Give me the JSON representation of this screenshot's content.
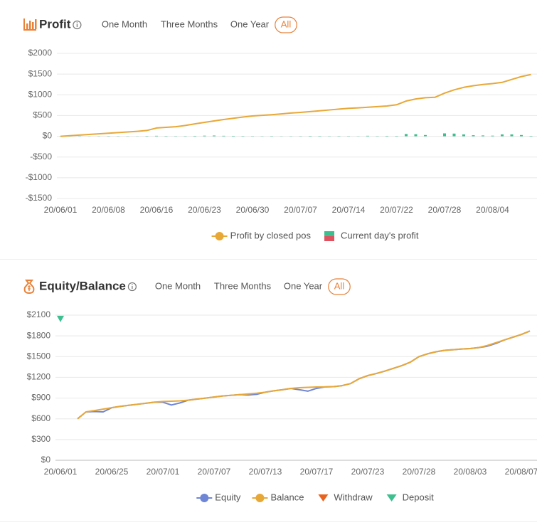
{
  "chart_data": [
    {
      "type": "line",
      "title": "Profit",
      "range_options": [
        "One Month",
        "Three Months",
        "One Year",
        "All"
      ],
      "selected_range": 3,
      "categories": [
        "20/06/01",
        null,
        null,
        null,
        null,
        "20/06/08",
        null,
        null,
        null,
        null,
        "20/06/16",
        null,
        null,
        null,
        null,
        "20/06/23",
        null,
        null,
        null,
        null,
        "20/06/30",
        null,
        null,
        null,
        null,
        "20/07/07",
        null,
        null,
        null,
        null,
        "20/07/14",
        null,
        null,
        null,
        null,
        "20/07/22",
        null,
        null,
        null,
        null,
        "20/07/28",
        null,
        null,
        null,
        null,
        "20/08/04",
        null,
        null,
        null,
        null
      ],
      "series": [
        {
          "name": "Profit by closed pos",
          "type": "line",
          "color": "#e8a838",
          "values": [
            0,
            15,
            30,
            45,
            60,
            75,
            90,
            105,
            120,
            140,
            200,
            215,
            230,
            260,
            300,
            335,
            370,
            405,
            435,
            465,
            490,
            505,
            520,
            540,
            560,
            575,
            595,
            615,
            635,
            655,
            675,
            685,
            700,
            715,
            730,
            760,
            850,
            900,
            930,
            940,
            1040,
            1120,
            1180,
            1220,
            1250,
            1270,
            1300,
            1370,
            1440,
            1490
          ]
        },
        {
          "name": "Current day's profit",
          "type": "bar",
          "color": "#3dbf8f",
          "negative_color": "#e05260",
          "values": [
            3,
            4,
            5,
            3,
            4,
            6,
            5,
            4,
            3,
            8,
            12,
            8,
            6,
            7,
            10,
            15,
            18,
            12,
            10,
            8,
            6,
            5,
            7,
            4,
            5,
            6,
            9,
            8,
            5,
            7,
            6,
            4,
            12,
            6,
            10,
            9,
            55,
            50,
            30,
            0,
            70,
            65,
            45,
            25,
            20,
            15,
            45,
            45,
            30,
            10
          ]
        }
      ],
      "ylim": [
        -1500,
        2000
      ],
      "yticks": [
        {
          "value": -1500,
          "label": "-$1500"
        },
        {
          "value": -1000,
          "label": "-$1000"
        },
        {
          "value": -500,
          "label": "-$500"
        },
        {
          "value": 0,
          "label": "$0"
        },
        {
          "value": 500,
          "label": "$500"
        },
        {
          "value": 1000,
          "label": "$1000"
        },
        {
          "value": 1500,
          "label": "$1500"
        },
        {
          "value": 2000,
          "label": "$2000"
        }
      ],
      "grid": true,
      "legend": "bottom"
    },
    {
      "type": "line",
      "title": "Equity/Balance",
      "range_options": [
        "One Month",
        "Three Months",
        "One Year",
        "All"
      ],
      "selected_range": 3,
      "categories": [
        "20/06/01",
        null,
        null,
        null,
        null,
        null,
        "20/06/25",
        null,
        null,
        null,
        null,
        null,
        "20/07/01",
        null,
        null,
        null,
        null,
        null,
        "20/07/07",
        null,
        null,
        null,
        null,
        null,
        "20/07/13",
        null,
        null,
        null,
        null,
        null,
        "20/07/17",
        null,
        null,
        null,
        null,
        null,
        "20/07/23",
        null,
        null,
        null,
        null,
        null,
        "20/07/28",
        null,
        null,
        null,
        null,
        null,
        "20/08/03",
        null,
        null,
        null,
        null,
        null,
        "20/08/07",
        null
      ],
      "series": [
        {
          "name": "Equity",
          "type": "line",
          "color": "#6f86d6",
          "values": [
            null,
            null,
            600,
            700,
            705,
            700,
            760,
            780,
            795,
            810,
            825,
            840,
            840,
            800,
            830,
            870,
            885,
            900,
            915,
            930,
            940,
            950,
            945,
            955,
            985,
            1005,
            1020,
            1040,
            1020,
            1000,
            1040,
            1062,
            1065,
            1080,
            1110,
            1180,
            1225,
            1255,
            1290,
            1330,
            1370,
            1420,
            1500,
            1540,
            1570,
            1590,
            1600,
            1610,
            1616,
            1630,
            1650,
            1690,
            1740,
            1780,
            1820,
            1870
          ]
        },
        {
          "name": "Balance",
          "type": "line",
          "color": "#e8a838",
          "values": [
            null,
            null,
            600,
            700,
            720,
            740,
            760,
            780,
            795,
            810,
            825,
            840,
            850,
            855,
            860,
            870,
            885,
            900,
            915,
            930,
            940,
            950,
            960,
            970,
            985,
            1005,
            1020,
            1040,
            1050,
            1055,
            1060,
            1062,
            1065,
            1080,
            1110,
            1180,
            1225,
            1255,
            1290,
            1330,
            1370,
            1420,
            1500,
            1540,
            1570,
            1590,
            1600,
            1610,
            1616,
            1630,
            1660,
            1700,
            1740,
            1780,
            1820,
            1870
          ]
        },
        {
          "name": "Withdraw",
          "type": "scatter",
          "color": "#e8641e",
          "values": [
            null,
            null,
            null,
            null,
            null,
            null,
            null,
            null,
            null,
            null,
            null,
            null,
            null,
            null,
            null,
            null,
            null,
            null,
            null,
            null,
            null,
            null,
            null,
            null,
            null,
            null,
            null,
            null,
            null,
            null,
            null,
            null,
            null,
            null,
            null,
            null,
            null,
            null,
            null,
            null,
            null,
            null,
            null,
            null,
            null,
            null,
            null,
            null,
            null,
            null,
            null,
            null,
            null,
            null,
            null,
            null
          ]
        },
        {
          "name": "Deposit",
          "type": "scatter",
          "color": "#3dbf8f",
          "values": [
            2050,
            null,
            null,
            null,
            null,
            null,
            null,
            null,
            null,
            null,
            null,
            null,
            null,
            null,
            null,
            null,
            null,
            null,
            null,
            null,
            null,
            null,
            null,
            null,
            null,
            null,
            null,
            null,
            null,
            null,
            null,
            null,
            null,
            null,
            null,
            null,
            null,
            null,
            null,
            null,
            null,
            null,
            null,
            null,
            null,
            null,
            null,
            null,
            null,
            null,
            null,
            null,
            null,
            null,
            null,
            null
          ]
        }
      ],
      "ylim": [
        0,
        2100
      ],
      "yticks": [
        {
          "value": 0,
          "label": "$0"
        },
        {
          "value": 300,
          "label": "$300"
        },
        {
          "value": 600,
          "label": "$600"
        },
        {
          "value": 900,
          "label": "$900"
        },
        {
          "value": 1200,
          "label": "$1200"
        },
        {
          "value": 1500,
          "label": "$1500"
        },
        {
          "value": 1800,
          "label": "$1800"
        },
        {
          "value": 2100,
          "label": "$2100"
        }
      ],
      "grid": true,
      "legend": "bottom"
    }
  ]
}
